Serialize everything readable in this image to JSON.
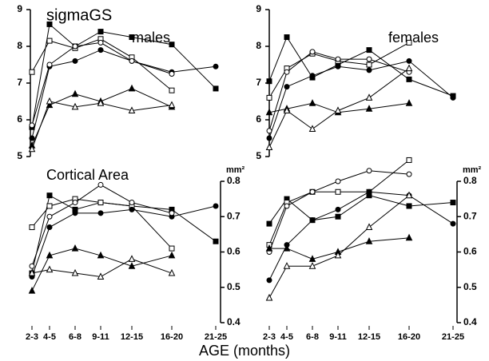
{
  "chart_data": [
    {
      "type": "line",
      "title": "sigmaGS",
      "label": "males",
      "ylim": [
        5,
        9
      ],
      "yticks": [
        5,
        6,
        7,
        8,
        9
      ],
      "series": [
        {
          "marker": "filled-square",
          "color": "#000000",
          "values": [
            5.8,
            8.6,
            8.0,
            8.4,
            8.25,
            8.05,
            6.85
          ]
        },
        {
          "marker": "open-square",
          "color": "#000000",
          "values": [
            7.3,
            8.15,
            7.95,
            8.2,
            7.7,
            6.8,
            null
          ]
        },
        {
          "marker": "filled-circle",
          "color": "#000000",
          "values": [
            5.5,
            7.45,
            7.6,
            7.9,
            7.6,
            7.3,
            7.45
          ]
        },
        {
          "marker": "open-circle",
          "color": "#000000",
          "values": [
            5.85,
            7.5,
            8.0,
            8.1,
            7.6,
            7.25,
            null
          ]
        },
        {
          "marker": "filled-triangle",
          "color": "#000000",
          "values": [
            5.3,
            6.4,
            6.7,
            6.5,
            6.85,
            6.35,
            null
          ]
        },
        {
          "marker": "open-triangle",
          "color": "#000000",
          "values": [
            5.2,
            6.5,
            6.35,
            6.45,
            6.25,
            6.4,
            null
          ]
        }
      ]
    },
    {
      "type": "line",
      "label": "females",
      "ylim": [
        5,
        9
      ],
      "yticks": [
        5,
        6,
        7,
        8,
        9
      ],
      "series": [
        {
          "marker": "filled-square",
          "color": "#000000",
          "values": [
            7.05,
            8.25,
            7.15,
            7.5,
            7.9,
            7.1,
            6.65
          ]
        },
        {
          "marker": "open-square",
          "color": "#000000",
          "values": [
            6.6,
            7.4,
            7.8,
            7.6,
            7.5,
            8.1,
            null
          ]
        },
        {
          "marker": "filled-circle",
          "color": "#000000",
          "values": [
            5.5,
            6.9,
            7.2,
            7.45,
            7.35,
            7.6,
            6.6
          ]
        },
        {
          "marker": "open-circle",
          "color": "#000000",
          "values": [
            5.7,
            7.3,
            7.85,
            7.65,
            7.65,
            7.3,
            null
          ]
        },
        {
          "marker": "filled-triangle",
          "color": "#000000",
          "values": [
            6.2,
            6.3,
            6.45,
            6.2,
            6.3,
            6.45,
            null
          ]
        },
        {
          "marker": "open-triangle",
          "color": "#000000",
          "values": [
            5.25,
            6.25,
            5.75,
            6.25,
            6.6,
            7.4,
            null
          ]
        }
      ]
    },
    {
      "type": "line",
      "title": "Cortical Area",
      "unit": "mm²",
      "xlabel": "AGE (months)",
      "categories": [
        "2-3",
        "4-5",
        "6-8",
        "9-11",
        "12-15",
        "16-20",
        "21-25"
      ],
      "ylim": [
        0.4,
        0.8
      ],
      "yticks": [
        0.4,
        0.5,
        0.6,
        0.7,
        0.8
      ],
      "series": [
        {
          "marker": "filled-square",
          "color": "#000000",
          "values": [
            0.54,
            0.76,
            0.72,
            0.74,
            0.73,
            0.72,
            0.63
          ]
        },
        {
          "marker": "open-square",
          "color": "#000000",
          "values": [
            0.67,
            0.73,
            0.75,
            0.74,
            0.73,
            0.61,
            null
          ]
        },
        {
          "marker": "filled-circle",
          "color": "#000000",
          "values": [
            0.53,
            0.67,
            0.71,
            0.71,
            0.72,
            0.7,
            0.73
          ]
        },
        {
          "marker": "open-circle",
          "color": "#000000",
          "values": [
            0.56,
            0.7,
            0.74,
            0.79,
            0.74,
            0.71,
            null
          ]
        },
        {
          "marker": "filled-triangle",
          "color": "#000000",
          "values": [
            0.49,
            0.59,
            0.61,
            0.59,
            0.56,
            0.59,
            null
          ]
        },
        {
          "marker": "open-triangle",
          "color": "#000000",
          "values": [
            0.54,
            0.55,
            0.54,
            0.53,
            0.58,
            0.54,
            null
          ]
        }
      ]
    },
    {
      "type": "line",
      "unit": "mm²",
      "categories": [
        "2-3",
        "4-5",
        "6-8",
        "9-11",
        "12-15",
        "16-20",
        "21-25"
      ],
      "ylim": [
        0.4,
        0.8
      ],
      "yticks": [
        0.4,
        0.5,
        0.6,
        0.7,
        0.8
      ],
      "series": [
        {
          "marker": "filled-square",
          "color": "#000000",
          "values": [
            0.68,
            0.75,
            0.69,
            0.7,
            0.76,
            0.73,
            0.74
          ]
        },
        {
          "marker": "open-square",
          "color": "#000000",
          "values": [
            0.62,
            0.74,
            0.77,
            0.77,
            0.77,
            0.86,
            null
          ]
        },
        {
          "marker": "filled-circle",
          "color": "#000000",
          "values": [
            0.52,
            0.62,
            0.69,
            0.72,
            0.77,
            0.76,
            0.68
          ]
        },
        {
          "marker": "open-circle",
          "color": "#000000",
          "values": [
            0.6,
            0.73,
            0.77,
            0.8,
            0.83,
            0.82,
            null
          ]
        },
        {
          "marker": "filled-triangle",
          "color": "#000000",
          "values": [
            0.61,
            0.61,
            0.58,
            0.6,
            0.63,
            0.64,
            null
          ]
        },
        {
          "marker": "open-triangle",
          "color": "#000000",
          "values": [
            0.47,
            0.56,
            0.56,
            0.59,
            0.67,
            0.76,
            null
          ]
        }
      ]
    }
  ]
}
